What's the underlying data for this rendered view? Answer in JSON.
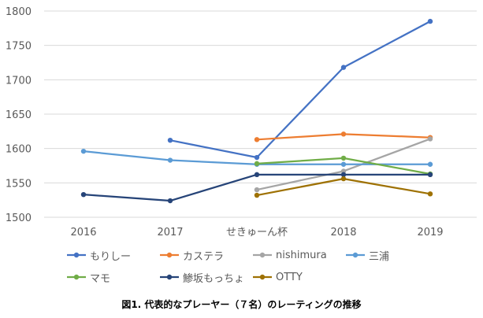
{
  "chart_data": {
    "type": "line",
    "title": "",
    "xlabel": "",
    "ylabel": "",
    "categories": [
      "2016",
      "2017",
      "せきゅーん杯",
      "2018",
      "2019"
    ],
    "ylim": [
      1500,
      1800
    ],
    "yticks": [
      "1500",
      "1550",
      "1600",
      "1650",
      "1700",
      "1750",
      "1800"
    ],
    "grid": "horizontal",
    "legend_position": "bottom",
    "series": [
      {
        "name": "もりしー",
        "color": "#4472C4",
        "values": [
          null,
          1612,
          1587,
          1718,
          1785
        ]
      },
      {
        "name": "カステラ",
        "color": "#ED7D31",
        "values": [
          null,
          null,
          1613,
          1621,
          1616
        ]
      },
      {
        "name": "nishimura",
        "color": "#A5A5A5",
        "values": [
          null,
          null,
          1540,
          1567,
          1614
        ]
      },
      {
        "name": "三浦",
        "color": "#5B9BD5",
        "values": [
          1596,
          1583,
          1577,
          1577,
          1577
        ]
      },
      {
        "name": "マモ",
        "color": "#70AD47",
        "values": [
          null,
          null,
          1578,
          1586,
          1563
        ]
      },
      {
        "name": "鯵坂もっちょ",
        "color": "#264478",
        "values": [
          1533,
          1524,
          1562,
          1562,
          1562
        ]
      },
      {
        "name": "OTTY",
        "color": "#9E7103",
        "values": [
          null,
          null,
          1532,
          1556,
          1534
        ]
      }
    ]
  },
  "caption": "図1. 代表的なプレーヤー（７名）のレーティングの推移"
}
